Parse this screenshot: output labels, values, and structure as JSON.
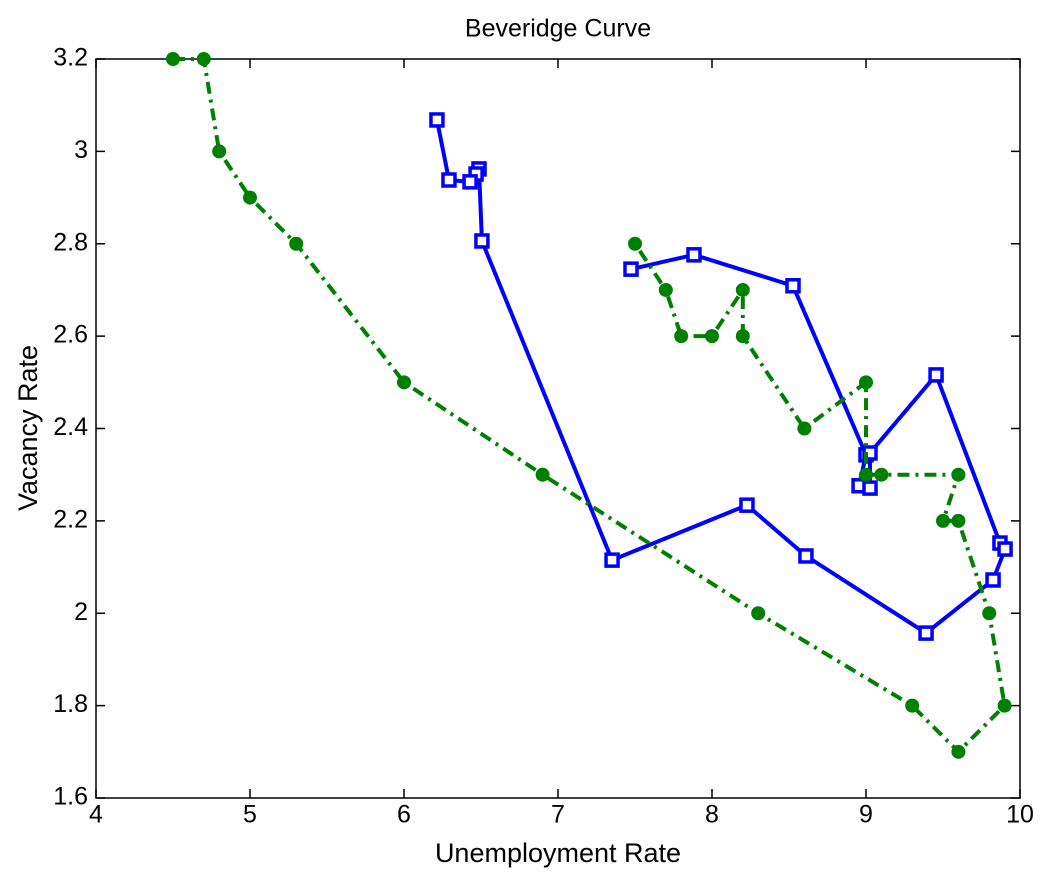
{
  "chart_data": {
    "type": "line",
    "title": "Beveridge Curve",
    "x_label": "Unemployment Rate",
    "y_label": "Vacancy Rate",
    "xlim": [
      4,
      10
    ],
    "xticks": [
      4,
      5,
      6,
      7,
      8,
      9,
      10
    ],
    "ylim": [
      1.6,
      3.2
    ],
    "yticks": [
      1.6,
      1.8,
      2,
      2.2,
      2.4,
      2.6,
      2.8,
      3,
      3.2
    ],
    "grid": false,
    "series": [
      {
        "color": "#0000ff",
        "line_style": "solid",
        "marker": "square",
        "x": [
          7.474,
          7.883,
          8.526,
          9.0,
          8.955,
          9.026,
          9.026,
          9.455,
          9.87,
          9.903,
          9.825,
          9.39,
          8.61,
          8.227,
          7.351,
          6.506,
          6.487,
          6.468,
          6.429,
          6.292,
          6.214
        ],
        "values": [
          2.745,
          2.776,
          2.709,
          2.343,
          2.276,
          2.271,
          2.347,
          2.516,
          2.152,
          2.139,
          2.072,
          1.957,
          2.124,
          2.234,
          2.115,
          2.806,
          2.962,
          2.951,
          2.934,
          2.938,
          3.068
        ]
      },
      {
        "color": "#008000",
        "line_style": "dashdot",
        "marker": "circle",
        "x": [
          4.5,
          4.7,
          4.8,
          5.0,
          5.3,
          6.0,
          6.9,
          8.3,
          9.3,
          9.6,
          9.9,
          9.8,
          9.6,
          9.5,
          9.6,
          9.1,
          9.0,
          9.0,
          8.6,
          8.2,
          8.2,
          8.0,
          7.8,
          7.7,
          7.5
        ],
        "values": [
          3.2,
          3.2,
          3.0,
          2.9,
          2.8,
          2.5,
          2.3,
          2.0,
          1.8,
          1.7,
          1.8,
          2.0,
          2.2,
          2.2,
          2.3,
          2.3,
          2.3,
          2.5,
          2.4,
          2.6,
          2.7,
          2.6,
          2.6,
          2.7,
          2.8
        ]
      }
    ]
  }
}
